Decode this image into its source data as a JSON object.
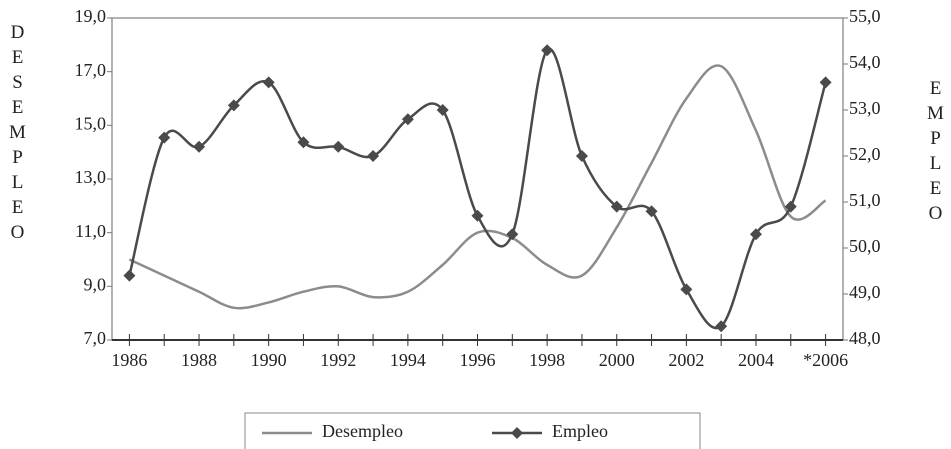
{
  "chart_data": {
    "type": "line",
    "y_label": "DESEMPLEO",
    "y2_label": "EMPLEO",
    "categories": [
      "1986",
      null,
      "1988",
      null,
      "1990",
      null,
      "1992",
      null,
      "1994",
      null,
      "1996",
      null,
      "1998",
      null,
      "2000",
      null,
      "2002",
      null,
      "2004",
      null,
      "*2006"
    ],
    "series": [
      {
        "name": "Desempleo",
        "color": "#8c8c8c",
        "marker": false,
        "values": [
          10.0,
          9.4,
          8.8,
          8.2,
          8.4,
          8.8,
          9.0,
          8.6,
          8.8,
          9.8,
          11.0,
          10.8,
          9.8,
          9.4,
          11.2,
          13.6,
          16.0,
          17.2,
          14.8,
          11.6,
          12.2
        ]
      },
      {
        "name": "Empleo",
        "color": "#4a4a4a",
        "marker": true,
        "axis": "y2",
        "values": [
          49.4,
          52.4,
          52.2,
          53.1,
          53.6,
          52.3,
          52.2,
          52.0,
          52.8,
          53.0,
          50.7,
          50.3,
          54.3,
          52.0,
          50.9,
          50.8,
          49.1,
          48.3,
          50.3,
          50.9,
          53.6
        ]
      }
    ],
    "ylim": [
      7,
      19
    ],
    "yticks": [
      {
        "value": 7,
        "label": "7,0"
      },
      {
        "value": 9,
        "label": "9,0"
      },
      {
        "value": 11,
        "label": "11,0"
      },
      {
        "value": 13,
        "label": "13,0"
      },
      {
        "value": 15,
        "label": "15,0"
      },
      {
        "value": 17,
        "label": "17,0"
      },
      {
        "value": 19,
        "label": "19,0"
      }
    ],
    "y2lim": [
      48,
      55
    ],
    "y2ticks": [
      {
        "value": 48,
        "label": "48,0"
      },
      {
        "value": 49,
        "label": "49,0"
      },
      {
        "value": 50,
        "label": "50,0"
      },
      {
        "value": 51,
        "label": "51,0"
      },
      {
        "value": 52,
        "label": "52,0"
      },
      {
        "value": 53,
        "label": "53,0"
      },
      {
        "value": 54,
        "label": "54,0"
      },
      {
        "value": 55,
        "label": "55,0"
      }
    ]
  }
}
